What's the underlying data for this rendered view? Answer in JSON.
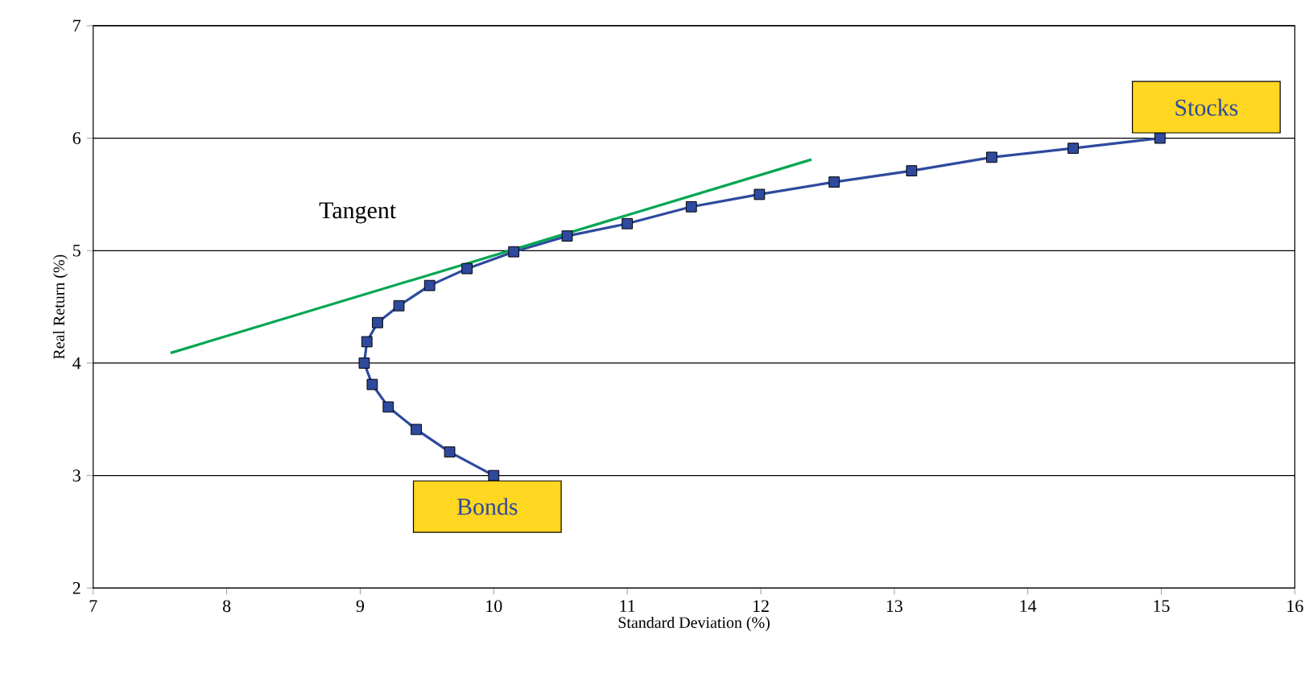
{
  "chart_data": {
    "type": "line",
    "xlabel": "Standard  Deviation  (%)",
    "ylabel": "Real  Return  (%)",
    "xlim": [
      7,
      16
    ],
    "ylim": [
      2,
      7
    ],
    "xticks": [
      7,
      8,
      9,
      10,
      11,
      12,
      13,
      14,
      15,
      16
    ],
    "yticks": [
      2,
      3,
      4,
      5,
      6,
      7
    ],
    "grid": "y",
    "series": [
      {
        "color": "#2e4a9e",
        "marker": "square",
        "x": [
          10.0,
          9.67,
          9.42,
          9.21,
          9.09,
          9.03,
          9.05,
          9.13,
          9.29,
          9.52,
          9.8,
          10.15,
          10.55,
          11.0,
          11.48,
          11.99,
          12.55,
          13.13,
          13.73,
          14.34,
          14.99
        ],
        "values": [
          3.0,
          3.21,
          3.41,
          3.61,
          3.81,
          4.0,
          4.19,
          4.36,
          4.51,
          4.69,
          4.84,
          4.99,
          5.13,
          5.24,
          5.39,
          5.5,
          5.61,
          5.71,
          5.83,
          5.91,
          6.0
        ]
      },
      {
        "color": "#00a651",
        "marker": "none",
        "x": [
          7.58,
          12.38
        ],
        "values": [
          4.09,
          5.81
        ]
      }
    ],
    "annotations": [
      "Tangent",
      {
        "text": "Bonds",
        "x": 10.0,
        "y": 3.0
      },
      {
        "text": "Stocks",
        "x": 15.0,
        "y": 6.0
      }
    ]
  }
}
